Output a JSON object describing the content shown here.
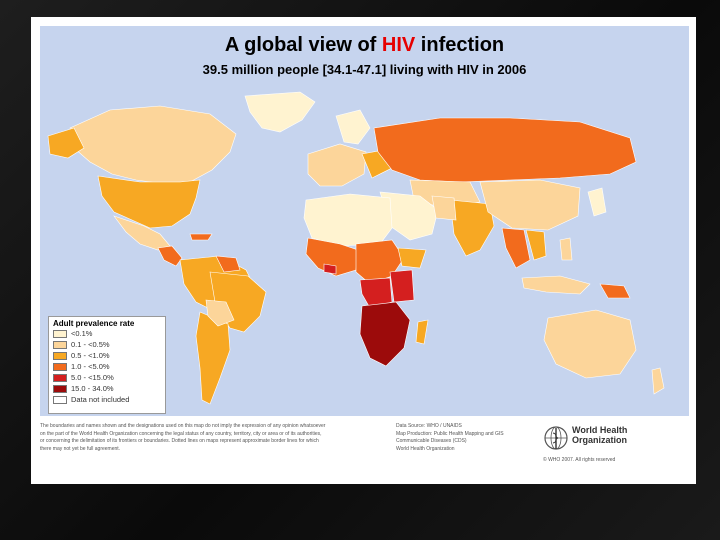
{
  "header": {
    "title_prefix": "A global view of ",
    "title_highlight": "HIV",
    "title_suffix": " infection",
    "subtitle": "39.5 million people [34.1-47.1] living with HIV in 2006"
  },
  "legend": {
    "title": "Adult prevalence rate",
    "items": [
      {
        "label": "<0.1%",
        "color": "#fff3d0"
      },
      {
        "label": "0.1 - <0.5%",
        "color": "#fcd59a"
      },
      {
        "label": "0.5 - <1.0%",
        "color": "#f7a823"
      },
      {
        "label": "1.0 - <5.0%",
        "color": "#f26b1d"
      },
      {
        "label": "5.0 - <15.0%",
        "color": "#d41f1f"
      },
      {
        "label": "15.0 - 34.0%",
        "color": "#9c0b0b"
      },
      {
        "label": "Data not included",
        "color": "#ffffff"
      }
    ]
  },
  "colors": {
    "ocean": "#c6d4ee",
    "lt01": "#fff3d0",
    "r01_05": "#fcd59a",
    "r05_10": "#f7a823",
    "r10_50": "#f26b1d",
    "r50_150": "#d41f1f",
    "r150_340": "#9c0b0b",
    "title_highlight": "#e60000"
  },
  "footer": {
    "disclaimer": [
      "The boundaries and names shown and the designations used on this map do not imply the expression of any opinion whatsoever",
      "on the part of the World Health Organization concerning the legal status of any country, territory, city or area or of its authorities,",
      "or concerning the delimitation of its frontiers or boundaries. Dotted lines on maps represent approximate border lines for which",
      "there may not yet be full agreement."
    ],
    "source": [
      "Data Source: WHO / UNAIDS",
      "Map Production: Public Health Mapping and GIS",
      "Communicable Diseases (CDS)",
      "World Health Organization"
    ],
    "org_line1": "World Health",
    "org_line2": "Organization",
    "copyright": "© WHO 2007. All rights reserved"
  }
}
